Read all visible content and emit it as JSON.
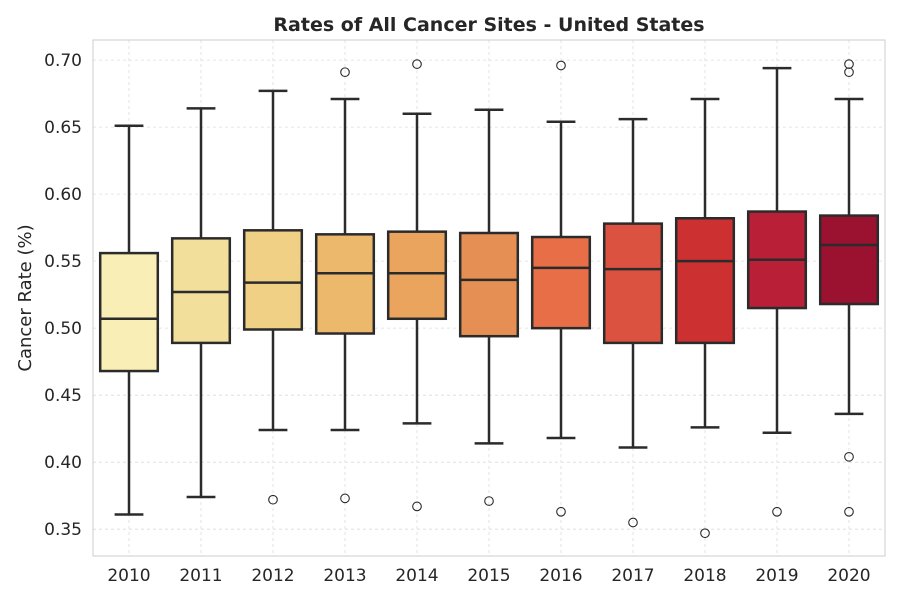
{
  "chart_data": {
    "type": "box",
    "title": "Rates of All Cancer Sites - United States",
    "xlabel": "",
    "ylabel": "Cancer Rate (%)",
    "ylim": [
      0.33,
      0.715
    ],
    "yticks": [
      0.35,
      0.4,
      0.45,
      0.5,
      0.55,
      0.6,
      0.65,
      0.7
    ],
    "ytick_labels": [
      "0.35",
      "0.40",
      "0.45",
      "0.50",
      "0.55",
      "0.60",
      "0.65",
      "0.70"
    ],
    "grid": true,
    "categories": [
      "2010",
      "2011",
      "2012",
      "2013",
      "2014",
      "2015",
      "2016",
      "2017",
      "2018",
      "2019",
      "2020"
    ],
    "boxes": [
      {
        "whisker_low": 0.361,
        "q1": 0.468,
        "median": 0.507,
        "q3": 0.556,
        "whisker_high": 0.651,
        "fliers": [],
        "color": "#f8eeb6"
      },
      {
        "whisker_low": 0.374,
        "q1": 0.489,
        "median": 0.527,
        "q3": 0.567,
        "whisker_high": 0.664,
        "fliers": [],
        "color": "#f2df9b"
      },
      {
        "whisker_low": 0.424,
        "q1": 0.499,
        "median": 0.534,
        "q3": 0.573,
        "whisker_high": 0.677,
        "fliers": [
          0.372
        ],
        "color": "#f0d084"
      },
      {
        "whisker_low": 0.424,
        "q1": 0.496,
        "median": 0.541,
        "q3": 0.57,
        "whisker_high": 0.671,
        "fliers": [
          0.373,
          0.691
        ],
        "color": "#ecb86b"
      },
      {
        "whisker_low": 0.429,
        "q1": 0.507,
        "median": 0.541,
        "q3": 0.572,
        "whisker_high": 0.66,
        "fliers": [
          0.367,
          0.697
        ],
        "color": "#eaa45e"
      },
      {
        "whisker_low": 0.414,
        "q1": 0.494,
        "median": 0.536,
        "q3": 0.571,
        "whisker_high": 0.663,
        "fliers": [
          0.371
        ],
        "color": "#e68f54"
      },
      {
        "whisker_low": 0.418,
        "q1": 0.5,
        "median": 0.545,
        "q3": 0.568,
        "whisker_high": 0.654,
        "fliers": [
          0.363,
          0.696
        ],
        "color": "#e86e48"
      },
      {
        "whisker_low": 0.411,
        "q1": 0.489,
        "median": 0.544,
        "q3": 0.578,
        "whisker_high": 0.656,
        "fliers": [
          0.355
        ],
        "color": "#dc5241"
      },
      {
        "whisker_low": 0.426,
        "q1": 0.489,
        "median": 0.55,
        "q3": 0.582,
        "whisker_high": 0.671,
        "fliers": [
          0.347
        ],
        "color": "#cc3031"
      },
      {
        "whisker_low": 0.422,
        "q1": 0.515,
        "median": 0.551,
        "q3": 0.587,
        "whisker_high": 0.694,
        "fliers": [
          0.363
        ],
        "color": "#b91f36"
      },
      {
        "whisker_low": 0.436,
        "q1": 0.518,
        "median": 0.562,
        "q3": 0.584,
        "whisker_high": 0.671,
        "fliers": [
          0.363,
          0.404,
          0.691,
          0.697
        ],
        "color": "#9b1230"
      }
    ]
  }
}
